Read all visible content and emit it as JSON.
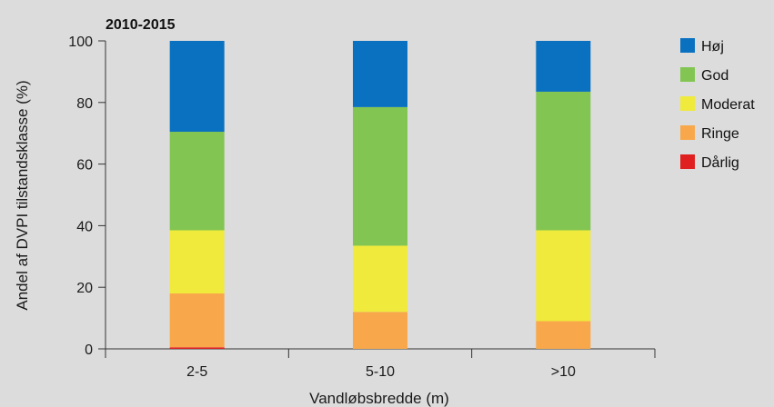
{
  "chart_data": {
    "type": "bar",
    "stacked": true,
    "title": "2010-2015",
    "xlabel": "Vandløbsbredde (m)",
    "ylabel": "Andel af DVPI tilstandsklasse (%)",
    "ylim": [
      0,
      100
    ],
    "yticks": [
      0,
      20,
      40,
      60,
      80,
      100
    ],
    "categories": [
      "2-5",
      "5-10",
      ">10"
    ],
    "legend_position": "right",
    "grid": false,
    "series": [
      {
        "name": "Dårlig",
        "color": "#e02020",
        "values": [
          0.5,
          0,
          0
        ]
      },
      {
        "name": "Ringe",
        "color": "#f8a84a",
        "values": [
          17.5,
          12,
          9
        ]
      },
      {
        "name": "Moderat",
        "color": "#f0ea3c",
        "values": [
          20.5,
          21.5,
          29.5
        ]
      },
      {
        "name": "God",
        "color": "#82c552",
        "values": [
          32,
          45,
          45
        ]
      },
      {
        "name": "Høj",
        "color": "#0a71c0",
        "values": [
          29.5,
          21.5,
          16.5
        ]
      }
    ],
    "legend_order": [
      "Høj",
      "God",
      "Moderat",
      "Ringe",
      "Dårlig"
    ]
  }
}
